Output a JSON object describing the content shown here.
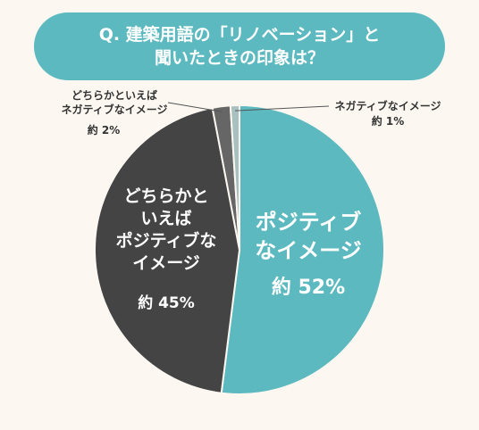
{
  "title_line1": "Q. 建築用語の「リノベーション」と",
  "title_line2": "聞いたときの印象は？",
  "colors": {
    "banner": "#5bb9bf",
    "positive": "#5bb9bf",
    "neutral_pos": "#444444",
    "neutral_neg": "#666666",
    "negative": "#a8c0c0",
    "background": "#fcf8f1"
  },
  "chart_data": {
    "type": "pie",
    "title": "Q. 建築用語の「リノベーション」と 聞いたときの印象は？",
    "slices": [
      {
        "label": "ポジティブなイメージ",
        "label_lines": [
          "ポジティブ",
          "なイメージ"
        ],
        "value": 52,
        "value_text": "約 52%",
        "color": "#5bb9bf"
      },
      {
        "label": "どちらかといえばポジティブなイメージ",
        "label_lines": [
          "どちらかと",
          "いえば",
          "ポジティブな",
          "イメージ"
        ],
        "value": 45,
        "value_text": "約 45%",
        "color": "#444444"
      },
      {
        "label": "どちらかといえばネガティブなイメージ",
        "label_lines": [
          "どちらかといえば",
          "ネガティブなイメージ"
        ],
        "value": 2,
        "value_text": "約 2%",
        "color": "#666666"
      },
      {
        "label": "ネガティブなイメージ",
        "label_lines": [
          "ネガティブなイメージ"
        ],
        "value": 1,
        "value_text": "約 1%",
        "color": "#a8c0c0"
      }
    ]
  }
}
